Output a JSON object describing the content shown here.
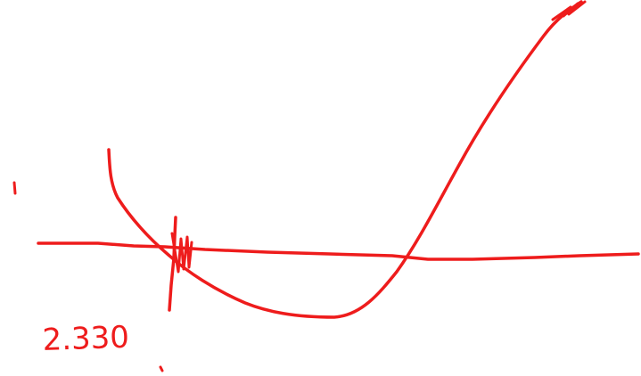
{
  "sketch": {
    "annotation_text": "2.330",
    "stroke_color": "#ee1c1c",
    "background_color": "#ffffff"
  }
}
